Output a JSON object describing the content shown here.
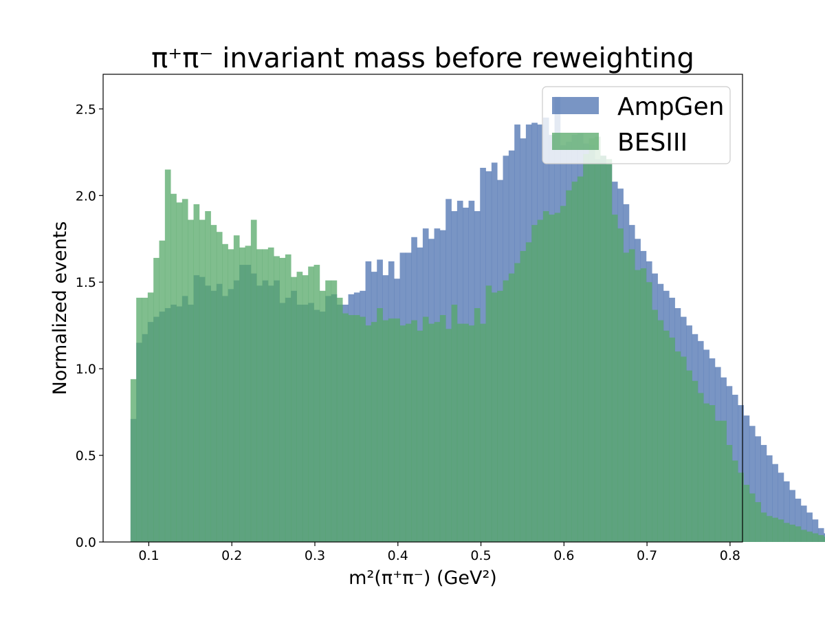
{
  "chart_data": {
    "type": "bar",
    "histogram": true,
    "title": "π⁺π⁻ invariant mass before reweighting",
    "xlabel": "m²(π⁺π⁻) (GeV²)",
    "ylabel": "Normalized events",
    "xlim": [
      0.045,
      0.815
    ],
    "ylim": [
      0.0,
      2.7
    ],
    "xticks": [
      0.1,
      0.2,
      0.3,
      0.4,
      0.5,
      0.6,
      0.7,
      0.8
    ],
    "xtick_labels": [
      "0.1",
      "0.2",
      "0.3",
      "0.4",
      "0.5",
      "0.6",
      "0.7",
      "0.8"
    ],
    "yticks": [
      0.0,
      0.5,
      1.0,
      1.5,
      2.0,
      2.5
    ],
    "ytick_labels": [
      "0.0",
      "0.5",
      "1.0",
      "1.5",
      "2.0",
      "2.5"
    ],
    "grid": false,
    "legend_position": "top-right",
    "bin_start": 0.078,
    "bin_width": 0.0069,
    "series": [
      {
        "name": "AmpGen",
        "color": "#4c72b0",
        "opacity": 0.75,
        "values": [
          0.71,
          1.15,
          1.2,
          1.27,
          1.3,
          1.33,
          1.35,
          1.37,
          1.36,
          1.42,
          1.37,
          1.54,
          1.53,
          1.48,
          1.45,
          1.49,
          1.42,
          1.46,
          1.51,
          1.6,
          1.6,
          1.55,
          1.48,
          1.51,
          1.48,
          1.51,
          1.38,
          1.41,
          1.45,
          1.37,
          1.37,
          1.38,
          1.34,
          1.33,
          1.42,
          1.43,
          1.37,
          1.37,
          1.43,
          1.44,
          1.45,
          1.62,
          1.56,
          1.63,
          1.54,
          1.62,
          1.52,
          1.67,
          1.67,
          1.76,
          1.7,
          1.81,
          1.75,
          1.81,
          1.8,
          1.98,
          1.91,
          1.97,
          1.93,
          1.97,
          1.91,
          2.16,
          2.14,
          2.19,
          2.09,
          2.23,
          2.26,
          2.41,
          2.33,
          2.41,
          2.42,
          2.41,
          2.45,
          2.35,
          2.57,
          2.29,
          2.31,
          2.35,
          2.36,
          2.3,
          2.29,
          2.21,
          2.23,
          2.18,
          2.08,
          2.04,
          1.95,
          1.83,
          1.75,
          1.68,
          1.62,
          1.55,
          1.49,
          1.45,
          1.41,
          1.35,
          1.3,
          1.25,
          1.2,
          1.16,
          1.11,
          1.06,
          1.01,
          0.95,
          0.9,
          0.85,
          0.79,
          0.73,
          0.67,
          0.61,
          0.56,
          0.5,
          0.45,
          0.4,
          0.35,
          0.3,
          0.25,
          0.21,
          0.17,
          0.13,
          0.08,
          0.05,
          0.02
        ]
      },
      {
        "name": "BESIII",
        "color": "#55a868",
        "opacity": 0.75,
        "values": [
          0.94,
          1.41,
          1.41,
          1.44,
          1.64,
          1.74,
          2.15,
          2.01,
          1.96,
          1.98,
          1.86,
          1.95,
          1.86,
          1.91,
          1.83,
          1.79,
          1.72,
          1.69,
          1.77,
          1.7,
          1.71,
          1.86,
          1.69,
          1.69,
          1.7,
          1.65,
          1.64,
          1.66,
          1.53,
          1.56,
          1.54,
          1.59,
          1.6,
          1.45,
          1.51,
          1.51,
          1.41,
          1.32,
          1.31,
          1.31,
          1.3,
          1.25,
          1.27,
          1.35,
          1.28,
          1.29,
          1.29,
          1.25,
          1.26,
          1.28,
          1.22,
          1.3,
          1.26,
          1.27,
          1.31,
          1.23,
          1.37,
          1.26,
          1.26,
          1.25,
          1.35,
          1.26,
          1.48,
          1.44,
          1.45,
          1.51,
          1.55,
          1.61,
          1.68,
          1.73,
          1.83,
          1.86,
          1.91,
          1.89,
          1.9,
          1.94,
          2.03,
          2.08,
          2.11,
          2.24,
          2.33,
          2.34,
          2.23,
          2.21,
          1.89,
          1.81,
          1.67,
          1.69,
          1.57,
          1.58,
          1.5,
          1.34,
          1.28,
          1.22,
          1.18,
          1.1,
          1.07,
          0.99,
          0.93,
          0.86,
          0.8,
          0.79,
          0.7,
          0.7,
          0.56,
          0.47,
          0.4,
          0.33,
          0.28,
          0.23,
          0.17,
          0.15,
          0.14,
          0.13,
          0.11,
          0.1,
          0.09,
          0.07,
          0.06,
          0.05,
          0.04,
          0.03,
          0.03
        ]
      }
    ]
  }
}
